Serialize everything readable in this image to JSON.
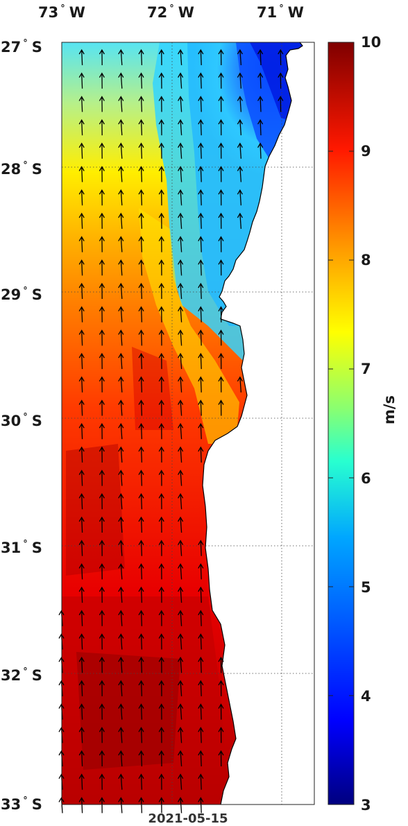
{
  "map": {
    "date": "2021-05-15",
    "lon_labels": [
      {
        "deg": "73",
        "hem": "W"
      },
      {
        "deg": "72",
        "hem": "W"
      },
      {
        "deg": "71",
        "hem": "W"
      }
    ],
    "lat_labels": [
      {
        "deg": "27",
        "hem": "S"
      },
      {
        "deg": "28",
        "hem": "S"
      },
      {
        "deg": "29",
        "hem": "S"
      },
      {
        "deg": "30",
        "hem": "S"
      },
      {
        "deg": "31",
        "hem": "S"
      },
      {
        "deg": "32",
        "hem": "S"
      },
      {
        "deg": "33",
        "hem": "S"
      }
    ],
    "lon_range": [
      -73.0,
      -70.7
    ],
    "lat_range": [
      -33.0,
      -27.0
    ],
    "grid": true,
    "field": "wind speed",
    "arrow_direction": "north"
  },
  "colorbar": {
    "unit": "m/s",
    "min": 3,
    "max": 10,
    "ticks": [
      "10",
      "9",
      "8",
      "7",
      "6",
      "5",
      "4",
      "3"
    ],
    "colormap": "jet"
  }
}
